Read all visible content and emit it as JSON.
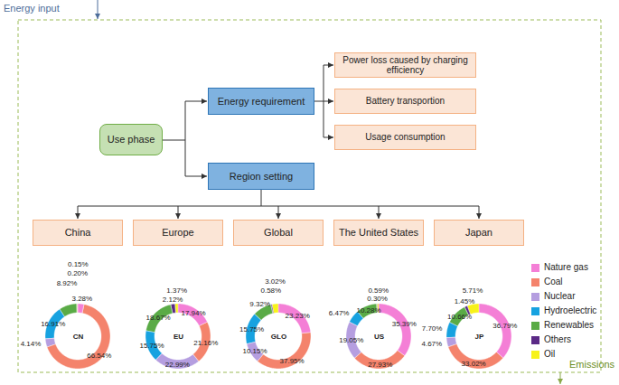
{
  "diagram": {
    "input": "Energy input",
    "output": "Emissions",
    "root": "Use phase",
    "branches": [
      {
        "label": "Energy requirement",
        "children": [
          "Power loss caused by charging efficiency",
          "Battery transportion",
          "Usage consumption"
        ]
      },
      {
        "label": "Region setting",
        "children": [
          "China",
          "Europe",
          "Global",
          "The United States",
          "Japan"
        ]
      }
    ]
  },
  "chart_data": [
    {
      "type": "pie",
      "title": "CN",
      "categories": [
        "Nature gas",
        "Coal",
        "Nuclear",
        "Hydroelectric",
        "Renewables",
        "Others",
        "Oil"
      ],
      "values": [
        3.28,
        66.54,
        4.14,
        16.91,
        8.92,
        0.2,
        0.15
      ],
      "value_labels": [
        "3.28%",
        "66.54%",
        "4.14%",
        "16.91%",
        "8.92%",
        "0.20%",
        "0.15%"
      ],
      "colors": [
        "#f47fd6",
        "#f4836c",
        "#b59ee0",
        "#17a2e0",
        "#5aab46",
        "#5b2a86",
        "#f7f21a"
      ],
      "data_labels": true,
      "legend": "right"
    },
    {
      "type": "pie",
      "title": "EU",
      "categories": [
        "Nature gas",
        "Coal",
        "Nuclear",
        "Hydroelectric",
        "Renewables",
        "Others",
        "Oil"
      ],
      "values": [
        17.94,
        21.16,
        22.99,
        15.75,
        18.67,
        2.12,
        1.37
      ],
      "value_labels": [
        "17.94%",
        "21.16%",
        "22.99%",
        "15.75%",
        "18.67%",
        "2.12%",
        "1.37%"
      ],
      "colors": [
        "#f47fd6",
        "#f4836c",
        "#b59ee0",
        "#17a2e0",
        "#5aab46",
        "#5b2a86",
        "#f7f21a"
      ],
      "data_labels": true,
      "legend": "right"
    },
    {
      "type": "pie",
      "title": "GLO",
      "categories": [
        "Nature gas",
        "Coal",
        "Nuclear",
        "Hydroelectric",
        "Renewables",
        "Others",
        "Oil"
      ],
      "values": [
        23.23,
        37.95,
        10.15,
        15.75,
        9.32,
        0.58,
        3.02
      ],
      "value_labels": [
        "23.23%",
        "37.95%",
        "10.15%",
        "15.75%",
        "9.32%",
        "0.58%",
        "3.02%"
      ],
      "colors": [
        "#f47fd6",
        "#f4836c",
        "#b59ee0",
        "#17a2e0",
        "#5aab46",
        "#5b2a86",
        "#f7f21a"
      ],
      "data_labels": true,
      "legend": "right"
    },
    {
      "type": "pie",
      "title": "US",
      "categories": [
        "Nature gas",
        "Coal",
        "Nuclear",
        "Hydroelectric",
        "Renewables",
        "Others",
        "Oil"
      ],
      "values": [
        35.39,
        27.93,
        19.05,
        6.47,
        10.28,
        0.3,
        0.59
      ],
      "value_labels": [
        "35.39%",
        "27.93%",
        "19.05%",
        "6.47%",
        "10.28%",
        "0.30%",
        "0.59%"
      ],
      "colors": [
        "#f47fd6",
        "#f4836c",
        "#b59ee0",
        "#17a2e0",
        "#5aab46",
        "#5b2a86",
        "#f7f21a"
      ],
      "data_labels": true,
      "legend": "right"
    },
    {
      "type": "pie",
      "title": "JP",
      "categories": [
        "Nature gas",
        "Coal",
        "Nuclear",
        "Hydroelectric",
        "Renewables",
        "Others",
        "Oil"
      ],
      "values": [
        36.79,
        33.02,
        4.67,
        7.7,
        10.66,
        1.45,
        5.71
      ],
      "value_labels": [
        "36.79%",
        "33.02%",
        "4.67%",
        "7.70%",
        "10.66%",
        "1.45%",
        "5.71%"
      ],
      "colors": [
        "#f47fd6",
        "#f4836c",
        "#b59ee0",
        "#17a2e0",
        "#5aab46",
        "#5b2a86",
        "#f7f21a"
      ],
      "data_labels": true,
      "legend": "right"
    }
  ]
}
